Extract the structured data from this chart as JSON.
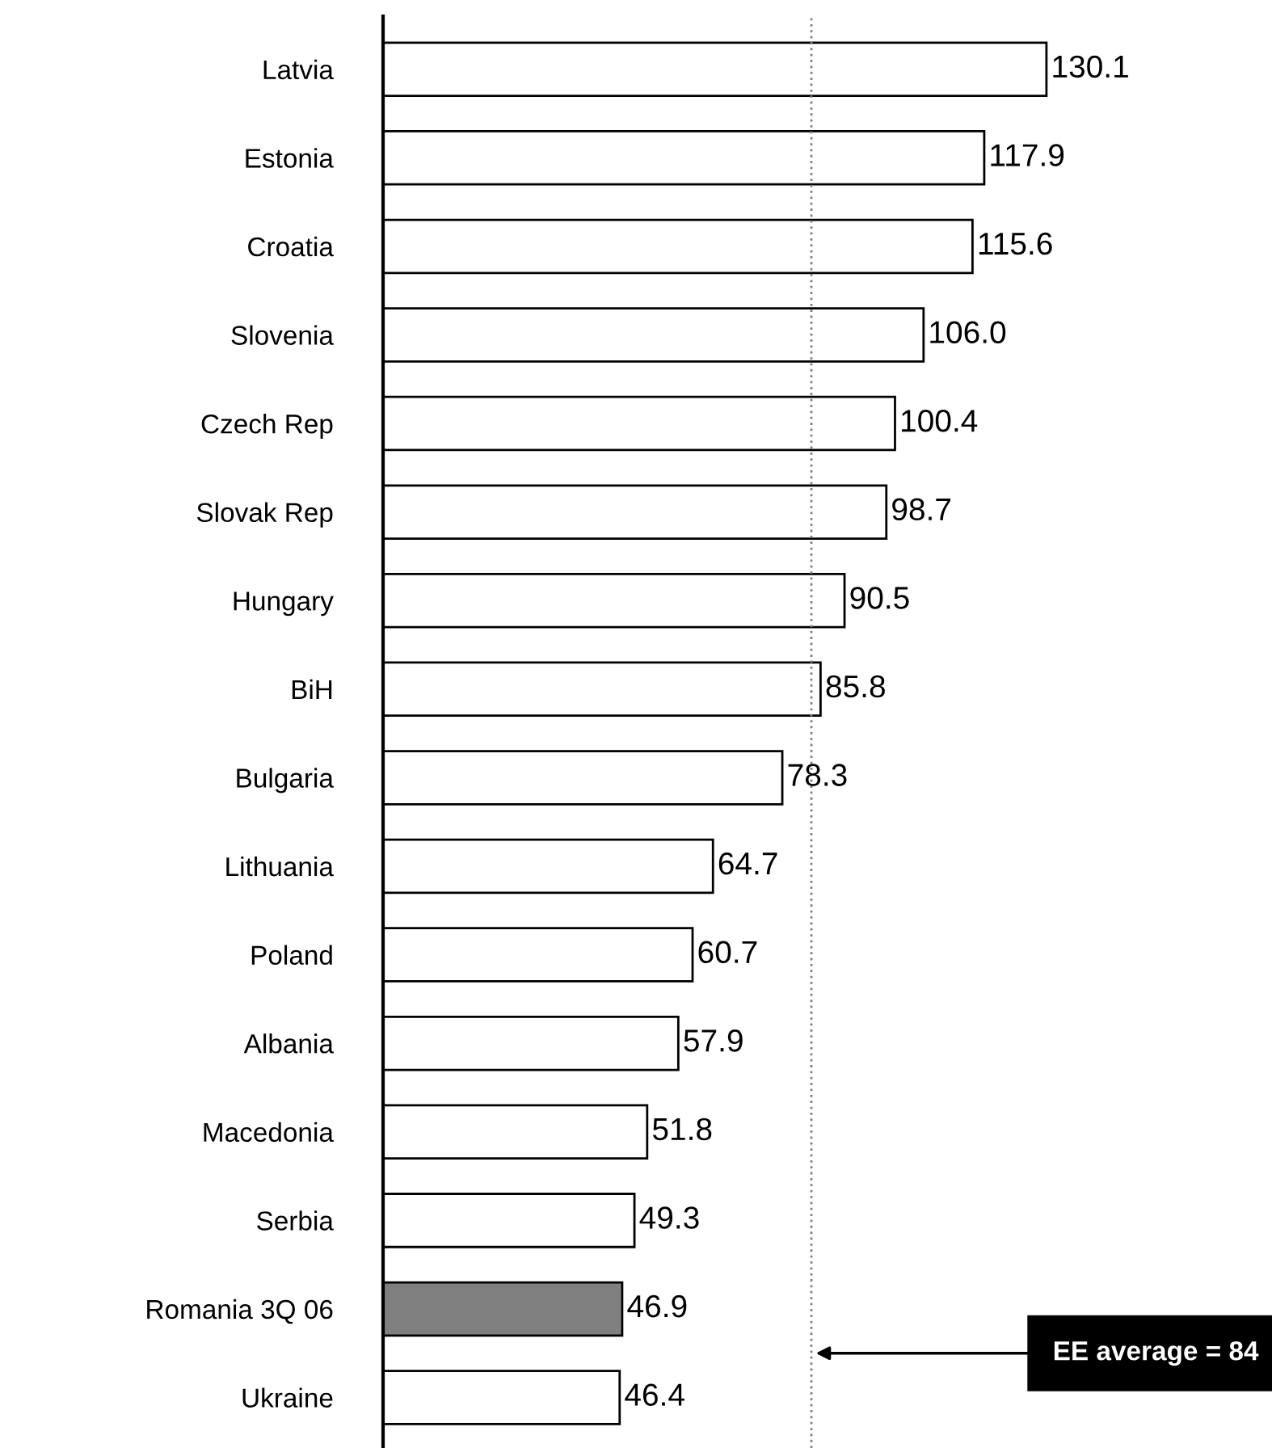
{
  "chart_data": {
    "type": "bar",
    "orientation": "horizontal",
    "categories": [
      "Latvia",
      "Estonia",
      "Croatia",
      "Slovenia",
      "Czech Rep",
      "Slovak Rep",
      "Hungary",
      "BiH",
      "Bulgaria",
      "Lithuania",
      "Poland",
      "Albania",
      "Macedonia",
      "Serbia",
      "Romania 3Q 06",
      "Ukraine"
    ],
    "values": [
      130.1,
      117.9,
      115.6,
      106.0,
      100.4,
      98.7,
      90.5,
      85.8,
      78.3,
      64.7,
      60.7,
      57.9,
      51.8,
      49.3,
      46.9,
      46.4
    ],
    "value_labels": [
      "130.1",
      "117.9",
      "115.6",
      "106.0",
      "100.4",
      "98.7",
      "90.5",
      "85.8",
      "78.3",
      "64.7",
      "60.7",
      "57.9",
      "51.8",
      "49.3",
      "46.9",
      "46.4"
    ],
    "colors": [
      "#ffffff",
      "#ffffff",
      "#ffffff",
      "#ffffff",
      "#ffffff",
      "#ffffff",
      "#ffffff",
      "#ffffff",
      "#ffffff",
      "#ffffff",
      "#ffffff",
      "#ffffff",
      "#ffffff",
      "#ffffff",
      "#808080",
      "#ffffff"
    ],
    "tick_labels": "y",
    "grid": false,
    "ref_lines": [
      {
        "axis": "x",
        "value": 84,
        "label": "EE average = 84",
        "color": "#808080",
        "line_style": "dotted"
      }
    ]
  }
}
